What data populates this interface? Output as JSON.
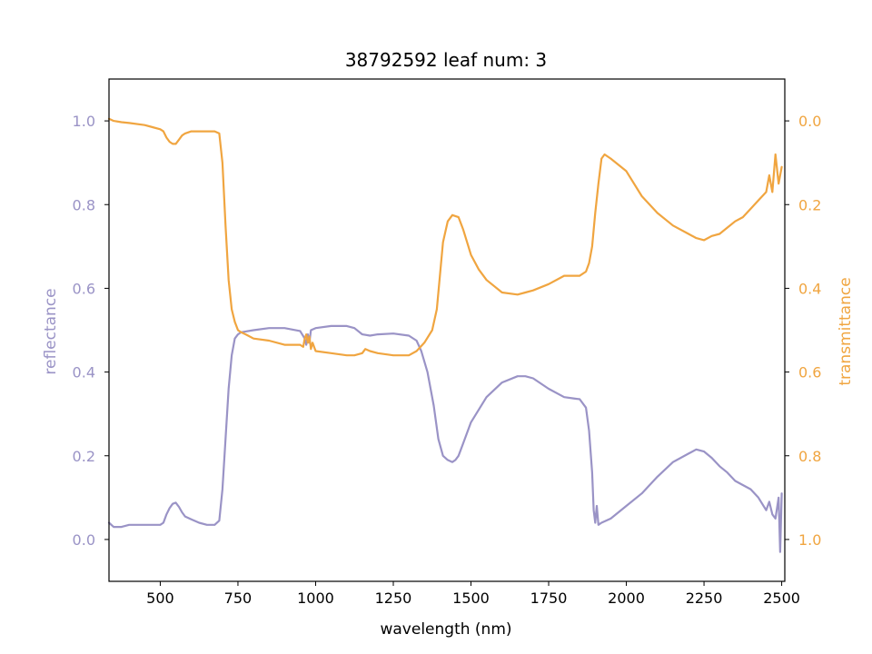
{
  "chart_data": {
    "type": "line",
    "title": "38792592 leaf num: 3",
    "xlabel": "wavelength (nm)",
    "ylabel_left": "reflectance",
    "ylabel_right": "transmittance",
    "xlim": [
      335,
      2510
    ],
    "ylim_left": [
      -0.1,
      1.1
    ],
    "ylim_right": [
      1.1,
      -0.1
    ],
    "right_axis_inverted": true,
    "x_ticks": [
      500,
      750,
      1000,
      1250,
      1500,
      1750,
      2000,
      2250,
      2500
    ],
    "y_ticks_left": [
      0.0,
      0.2,
      0.4,
      0.6,
      0.8,
      1.0
    ],
    "y_ticks_right": [
      0.0,
      0.2,
      0.4,
      0.6,
      0.8,
      1.0
    ],
    "x_tick_labels": [
      "500",
      "750",
      "1000",
      "1250",
      "1500",
      "1750",
      "2000",
      "2250",
      "2500"
    ],
    "y_tick_labels_left": [
      "0.0",
      "0.2",
      "0.4",
      "0.6",
      "0.8",
      "1.0"
    ],
    "y_tick_labels_right": [
      "0.0",
      "0.2",
      "0.4",
      "0.6",
      "0.8",
      "1.0"
    ],
    "grid": false,
    "colors": {
      "reflectance": "#9a93c6",
      "transmittance": "#f0a540"
    },
    "series": [
      {
        "axis": "left",
        "color": "#9a93c6",
        "x": [
          335,
          350,
          375,
          400,
          425,
          450,
          475,
          500,
          510,
          520,
          530,
          540,
          550,
          560,
          570,
          580,
          600,
          625,
          650,
          675,
          690,
          700,
          710,
          720,
          730,
          740,
          750,
          760,
          775,
          800,
          850,
          900,
          950,
          965,
          970,
          975,
          980,
          985,
          1000,
          1050,
          1100,
          1125,
          1150,
          1175,
          1200,
          1250,
          1300,
          1325,
          1340,
          1360,
          1380,
          1395,
          1410,
          1425,
          1440,
          1450,
          1460,
          1475,
          1500,
          1550,
          1600,
          1650,
          1675,
          1700,
          1750,
          1800,
          1830,
          1850,
          1870,
          1880,
          1890,
          1895,
          1900,
          1905,
          1910,
          1920,
          1950,
          2000,
          2050,
          2100,
          2150,
          2200,
          2225,
          2250,
          2275,
          2300,
          2325,
          2350,
          2375,
          2400,
          2425,
          2450,
          2460,
          2470,
          2480,
          2490,
          2495,
          2500
        ],
        "values": [
          0.04,
          0.03,
          0.03,
          0.035,
          0.035,
          0.035,
          0.035,
          0.035,
          0.04,
          0.06,
          0.075,
          0.085,
          0.088,
          0.078,
          0.065,
          0.055,
          0.048,
          0.04,
          0.035,
          0.035,
          0.045,
          0.12,
          0.24,
          0.36,
          0.44,
          0.48,
          0.49,
          0.495,
          0.497,
          0.5,
          0.505,
          0.505,
          0.498,
          0.48,
          0.465,
          0.49,
          0.47,
          0.5,
          0.505,
          0.51,
          0.51,
          0.505,
          0.49,
          0.487,
          0.49,
          0.492,
          0.487,
          0.475,
          0.45,
          0.4,
          0.32,
          0.24,
          0.2,
          0.19,
          0.185,
          0.19,
          0.2,
          0.23,
          0.28,
          0.34,
          0.375,
          0.39,
          0.39,
          0.385,
          0.36,
          0.34,
          0.337,
          0.335,
          0.315,
          0.26,
          0.16,
          0.07,
          0.04,
          0.08,
          0.035,
          0.04,
          0.05,
          0.08,
          0.11,
          0.15,
          0.185,
          0.205,
          0.215,
          0.21,
          0.195,
          0.175,
          0.16,
          0.14,
          0.13,
          0.12,
          0.1,
          0.07,
          0.09,
          0.06,
          0.05,
          0.1,
          -0.03,
          0.11
        ]
      },
      {
        "axis": "right",
        "color": "#f0a540",
        "x": [
          335,
          350,
          375,
          400,
          450,
          475,
          500,
          510,
          520,
          530,
          540,
          550,
          560,
          570,
          580,
          600,
          625,
          650,
          675,
          690,
          700,
          710,
          720,
          730,
          740,
          750,
          760,
          775,
          800,
          850,
          900,
          950,
          960,
          965,
          970,
          975,
          980,
          985,
          990,
          1000,
          1050,
          1100,
          1125,
          1150,
          1160,
          1175,
          1200,
          1250,
          1300,
          1325,
          1350,
          1375,
          1390,
          1400,
          1410,
          1425,
          1440,
          1460,
          1475,
          1500,
          1525,
          1550,
          1600,
          1650,
          1675,
          1700,
          1750,
          1800,
          1850,
          1870,
          1880,
          1890,
          1900,
          1910,
          1920,
          1930,
          1950,
          2000,
          2050,
          2100,
          2150,
          2200,
          2225,
          2250,
          2275,
          2300,
          2325,
          2350,
          2375,
          2400,
          2425,
          2450,
          2460,
          2470,
          2480,
          2490,
          2500
        ],
        "values": [
          -0.005,
          0.0,
          0.003,
          0.005,
          0.01,
          0.015,
          0.02,
          0.025,
          0.04,
          0.05,
          0.055,
          0.055,
          0.045,
          0.035,
          0.03,
          0.025,
          0.025,
          0.025,
          0.025,
          0.03,
          0.1,
          0.25,
          0.38,
          0.45,
          0.48,
          0.5,
          0.505,
          0.51,
          0.52,
          0.525,
          0.535,
          0.535,
          0.54,
          0.52,
          0.51,
          0.53,
          0.515,
          0.545,
          0.53,
          0.55,
          0.555,
          0.56,
          0.56,
          0.555,
          0.545,
          0.55,
          0.555,
          0.56,
          0.56,
          0.55,
          0.53,
          0.5,
          0.45,
          0.37,
          0.29,
          0.24,
          0.225,
          0.23,
          0.26,
          0.32,
          0.355,
          0.38,
          0.41,
          0.415,
          0.41,
          0.405,
          0.39,
          0.37,
          0.37,
          0.36,
          0.34,
          0.3,
          0.22,
          0.15,
          0.09,
          0.08,
          0.09,
          0.12,
          0.18,
          0.22,
          0.25,
          0.27,
          0.28,
          0.285,
          0.275,
          0.27,
          0.255,
          0.24,
          0.23,
          0.21,
          0.19,
          0.17,
          0.13,
          0.17,
          0.08,
          0.15,
          0.11
        ]
      }
    ]
  }
}
